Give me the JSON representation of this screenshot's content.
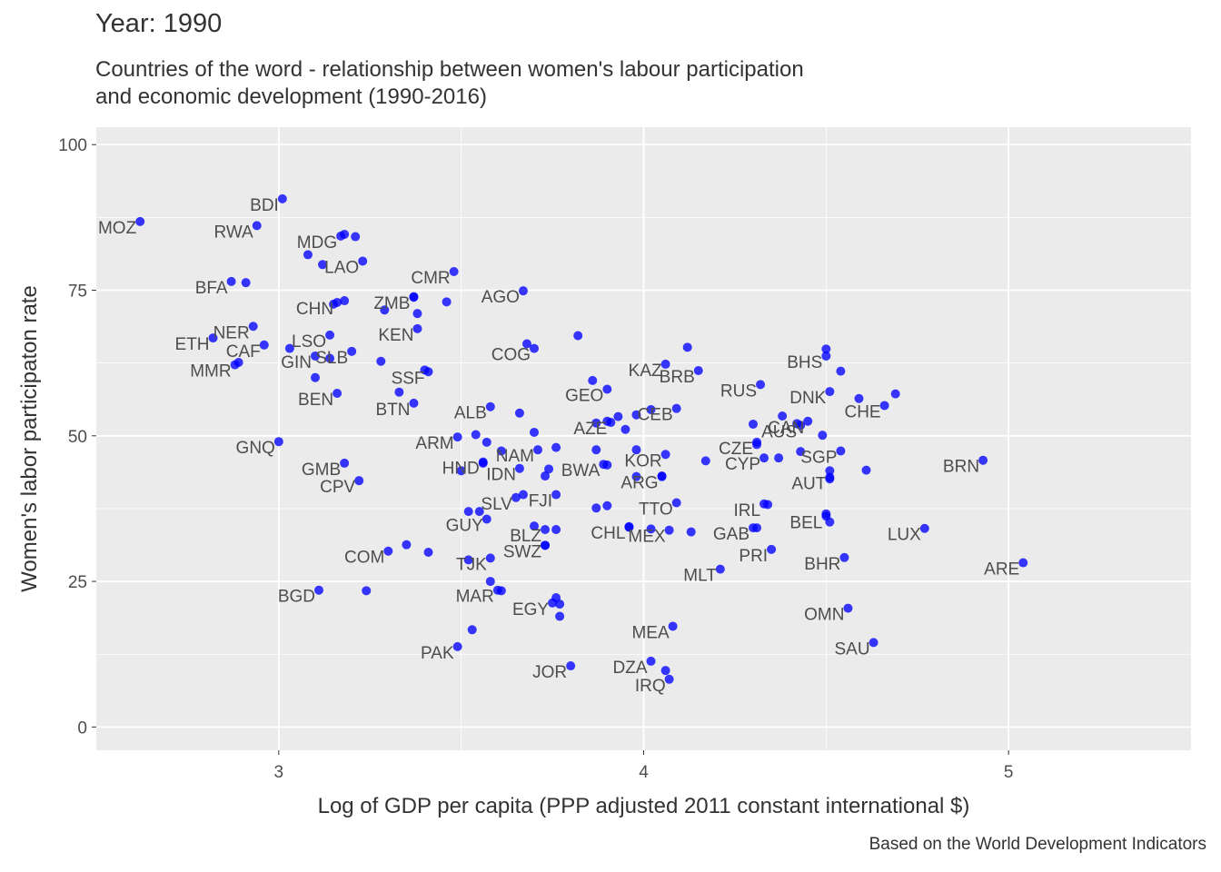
{
  "title": "Year: 1990",
  "subtitle_line1": "Countries of the word - relationship between women's labour participation",
  "subtitle_line2": "and economic development (1990-2016)",
  "caption": "Based on the World Development Indicators",
  "colors": {
    "panel": "#ebebeb",
    "grid": "#ffffff",
    "point": "#0000ff"
  },
  "chart_data": {
    "type": "scatter",
    "title": "Year: 1990",
    "xlabel": "Log of GDP per capita (PPP adjusted 2011 constant international $)",
    "ylabel": "Women's labor participaton rate",
    "xlim": [
      2.5,
      5.5
    ],
    "ylim": [
      -4,
      103
    ],
    "xticks": [
      3,
      4,
      5
    ],
    "yticks": [
      0,
      25,
      50,
      75,
      100
    ],
    "grid": true,
    "labeled_points": [
      {
        "label": "MOZ",
        "x": 2.62,
        "y": 86.8
      },
      {
        "label": "BDI",
        "x": 3.01,
        "y": 90.7
      },
      {
        "label": "RWA",
        "x": 2.94,
        "y": 86.1
      },
      {
        "label": "MDG",
        "x": 3.17,
        "y": 84.3
      },
      {
        "label": "LAO",
        "x": 3.23,
        "y": 80.0
      },
      {
        "label": "BFA",
        "x": 2.87,
        "y": 76.5
      },
      {
        "label": "CMR",
        "x": 3.48,
        "y": 78.2
      },
      {
        "label": "AGO",
        "x": 3.67,
        "y": 74.9
      },
      {
        "label": "CHN",
        "x": 3.16,
        "y": 72.9
      },
      {
        "label": "ZMB",
        "x": 3.37,
        "y": 73.8
      },
      {
        "label": "NER",
        "x": 2.93,
        "y": 68.8
      },
      {
        "label": "KEN",
        "x": 3.38,
        "y": 68.4
      },
      {
        "label": "ETH",
        "x": 2.82,
        "y": 66.8
      },
      {
        "label": "CAF",
        "x": 2.96,
        "y": 65.6
      },
      {
        "label": "LSO",
        "x": 3.14,
        "y": 67.3
      },
      {
        "label": "MMR",
        "x": 2.88,
        "y": 62.2
      },
      {
        "label": "GIN",
        "x": 3.1,
        "y": 63.7
      },
      {
        "label": "SLB",
        "x": 3.2,
        "y": 64.5
      },
      {
        "label": "COG",
        "x": 3.7,
        "y": 65.0
      },
      {
        "label": "KAZ",
        "x": 4.06,
        "y": 62.3
      },
      {
        "label": "BHS",
        "x": 4.5,
        "y": 63.7
      },
      {
        "label": "SSF",
        "x": 3.41,
        "y": 61.0
      },
      {
        "label": "BRB",
        "x": 4.15,
        "y": 61.2
      },
      {
        "label": "DNK",
        "x": 4.51,
        "y": 57.6
      },
      {
        "label": "RUS",
        "x": 4.32,
        "y": 58.8
      },
      {
        "label": "CAN",
        "x": 4.45,
        "y": 52.5
      },
      {
        "label": "CHE",
        "x": 4.66,
        "y": 55.2
      },
      {
        "label": "BEN",
        "x": 3.16,
        "y": 57.3
      },
      {
        "label": "GEO",
        "x": 3.9,
        "y": 58.0
      },
      {
        "label": "BTN",
        "x": 3.37,
        "y": 55.6
      },
      {
        "label": "CEB",
        "x": 4.09,
        "y": 54.7
      },
      {
        "label": "ALB",
        "x": 3.58,
        "y": 55.0
      },
      {
        "label": "AZE",
        "x": 3.91,
        "y": 52.3
      },
      {
        "label": "CZE",
        "x": 4.31,
        "y": 48.9
      },
      {
        "label": "AUS",
        "x": 4.43,
        "y": 51.8
      },
      {
        "label": "GNQ",
        "x": 3.0,
        "y": 49.0
      },
      {
        "label": "ARM",
        "x": 3.49,
        "y": 49.8
      },
      {
        "label": "NAM",
        "x": 3.71,
        "y": 47.6
      },
      {
        "label": "KOR",
        "x": 4.06,
        "y": 46.8
      },
      {
        "label": "SGP",
        "x": 4.54,
        "y": 47.4
      },
      {
        "label": "BRN",
        "x": 4.93,
        "y": 45.8
      },
      {
        "label": "GMB",
        "x": 3.18,
        "y": 45.3
      },
      {
        "label": "HND",
        "x": 3.56,
        "y": 45.5
      },
      {
        "label": "IDN",
        "x": 3.66,
        "y": 44.4
      },
      {
        "label": "BWA",
        "x": 3.89,
        "y": 45.1
      },
      {
        "label": "ARG",
        "x": 4.05,
        "y": 43.0
      },
      {
        "label": "CYP",
        "x": 4.33,
        "y": 46.2
      },
      {
        "label": "AUT",
        "x": 4.51,
        "y": 42.9
      },
      {
        "label": "CPV",
        "x": 3.22,
        "y": 42.3
      },
      {
        "label": "SLV",
        "x": 3.65,
        "y": 39.4
      },
      {
        "label": "FJI",
        "x": 3.76,
        "y": 39.9
      },
      {
        "label": "TTO",
        "x": 4.09,
        "y": 38.5
      },
      {
        "label": "IRL",
        "x": 4.33,
        "y": 38.3
      },
      {
        "label": "GUY",
        "x": 3.57,
        "y": 35.7
      },
      {
        "label": "BEL",
        "x": 4.5,
        "y": 36.2
      },
      {
        "label": "CHL",
        "x": 3.96,
        "y": 34.4
      },
      {
        "label": "MEX",
        "x": 4.07,
        "y": 33.8
      },
      {
        "label": "GAB",
        "x": 4.3,
        "y": 34.2
      },
      {
        "label": "LUX",
        "x": 4.77,
        "y": 34.1
      },
      {
        "label": "BLZ",
        "x": 3.73,
        "y": 33.9
      },
      {
        "label": "SWZ",
        "x": 3.73,
        "y": 31.2
      },
      {
        "label": "PRI",
        "x": 4.35,
        "y": 30.5
      },
      {
        "label": "COM",
        "x": 3.3,
        "y": 30.2
      },
      {
        "label": "TJK",
        "x": 3.58,
        "y": 29.0
      },
      {
        "label": "BHR",
        "x": 4.55,
        "y": 29.1
      },
      {
        "label": "ARE",
        "x": 5.04,
        "y": 28.2
      },
      {
        "label": "MLT",
        "x": 4.21,
        "y": 27.1
      },
      {
        "label": "BGD",
        "x": 3.11,
        "y": 23.5
      },
      {
        "label": "MAR",
        "x": 3.6,
        "y": 23.5
      },
      {
        "label": "EGY",
        "x": 3.75,
        "y": 21.3
      },
      {
        "label": "OMN",
        "x": 4.56,
        "y": 20.4
      },
      {
        "label": "MEA",
        "x": 4.08,
        "y": 17.3
      },
      {
        "label": "SAU",
        "x": 4.63,
        "y": 14.5
      },
      {
        "label": "PAK",
        "x": 3.49,
        "y": 13.8
      },
      {
        "label": "JOR",
        "x": 3.8,
        "y": 10.5
      },
      {
        "label": "DZA",
        "x": 4.02,
        "y": 11.3
      },
      {
        "label": "IRQ",
        "x": 4.07,
        "y": 8.2
      }
    ],
    "points": [
      {
        "x": 3.18,
        "y": 84.6
      },
      {
        "x": 3.21,
        "y": 84.2
      },
      {
        "x": 3.08,
        "y": 81.1
      },
      {
        "x": 3.12,
        "y": 79.4
      },
      {
        "x": 2.91,
        "y": 76.3
      },
      {
        "x": 3.37,
        "y": 73.9
      },
      {
        "x": 3.46,
        "y": 73.0
      },
      {
        "x": 3.18,
        "y": 73.2
      },
      {
        "x": 3.15,
        "y": 72.6
      },
      {
        "x": 3.38,
        "y": 71.0
      },
      {
        "x": 3.29,
        "y": 71.6
      },
      {
        "x": 3.82,
        "y": 67.2
      },
      {
        "x": 4.12,
        "y": 65.2
      },
      {
        "x": 4.5,
        "y": 64.9
      },
      {
        "x": 3.68,
        "y": 65.8
      },
      {
        "x": 3.03,
        "y": 65.0
      },
      {
        "x": 3.14,
        "y": 63.3
      },
      {
        "x": 3.1,
        "y": 60.0
      },
      {
        "x": 3.28,
        "y": 62.8
      },
      {
        "x": 3.4,
        "y": 61.3
      },
      {
        "x": 2.89,
        "y": 62.6
      },
      {
        "x": 4.54,
        "y": 61.1
      },
      {
        "x": 3.86,
        "y": 59.5
      },
      {
        "x": 3.33,
        "y": 57.5
      },
      {
        "x": 4.59,
        "y": 56.4
      },
      {
        "x": 4.69,
        "y": 57.2
      },
      {
        "x": 4.38,
        "y": 53.4
      },
      {
        "x": 4.02,
        "y": 54.5
      },
      {
        "x": 3.98,
        "y": 53.6
      },
      {
        "x": 3.66,
        "y": 53.9
      },
      {
        "x": 3.93,
        "y": 53.3
      },
      {
        "x": 3.87,
        "y": 52.2
      },
      {
        "x": 3.9,
        "y": 52.5
      },
      {
        "x": 3.95,
        "y": 51.1
      },
      {
        "x": 4.3,
        "y": 52.0
      },
      {
        "x": 4.42,
        "y": 52.1
      },
      {
        "x": 3.7,
        "y": 50.6
      },
      {
        "x": 3.54,
        "y": 50.2
      },
      {
        "x": 4.49,
        "y": 50.1
      },
      {
        "x": 3.57,
        "y": 48.9
      },
      {
        "x": 3.61,
        "y": 47.4
      },
      {
        "x": 3.76,
        "y": 48.0
      },
      {
        "x": 3.87,
        "y": 47.6
      },
      {
        "x": 3.98,
        "y": 47.6
      },
      {
        "x": 4.31,
        "y": 48.5
      },
      {
        "x": 4.43,
        "y": 47.3
      },
      {
        "x": 4.37,
        "y": 46.2
      },
      {
        "x": 4.17,
        "y": 45.7
      },
      {
        "x": 3.56,
        "y": 45.3
      },
      {
        "x": 3.5,
        "y": 44.0
      },
      {
        "x": 3.74,
        "y": 44.3
      },
      {
        "x": 3.73,
        "y": 43.1
      },
      {
        "x": 3.9,
        "y": 45.0
      },
      {
        "x": 3.98,
        "y": 43.0
      },
      {
        "x": 4.05,
        "y": 43.1
      },
      {
        "x": 4.51,
        "y": 44.0
      },
      {
        "x": 4.51,
        "y": 42.6
      },
      {
        "x": 4.61,
        "y": 44.1
      },
      {
        "x": 3.67,
        "y": 39.9
      },
      {
        "x": 3.87,
        "y": 37.6
      },
      {
        "x": 3.9,
        "y": 38.0
      },
      {
        "x": 3.52,
        "y": 37.0
      },
      {
        "x": 3.55,
        "y": 37.0
      },
      {
        "x": 4.34,
        "y": 38.2
      },
      {
        "x": 4.5,
        "y": 36.6
      },
      {
        "x": 4.51,
        "y": 35.2
      },
      {
        "x": 4.31,
        "y": 34.2
      },
      {
        "x": 4.02,
        "y": 34.0
      },
      {
        "x": 4.13,
        "y": 33.5
      },
      {
        "x": 3.96,
        "y": 34.3
      },
      {
        "x": 3.76,
        "y": 33.9
      },
      {
        "x": 3.7,
        "y": 34.5
      },
      {
        "x": 3.73,
        "y": 31.2
      },
      {
        "x": 3.35,
        "y": 31.3
      },
      {
        "x": 3.41,
        "y": 30.0
      },
      {
        "x": 3.52,
        "y": 28.7
      },
      {
        "x": 3.24,
        "y": 23.4
      },
      {
        "x": 3.58,
        "y": 25.0
      },
      {
        "x": 3.61,
        "y": 23.4
      },
      {
        "x": 3.76,
        "y": 22.2
      },
      {
        "x": 3.77,
        "y": 21.1
      },
      {
        "x": 3.77,
        "y": 19.0
      },
      {
        "x": 3.53,
        "y": 16.7
      },
      {
        "x": 4.06,
        "y": 9.7
      }
    ]
  }
}
